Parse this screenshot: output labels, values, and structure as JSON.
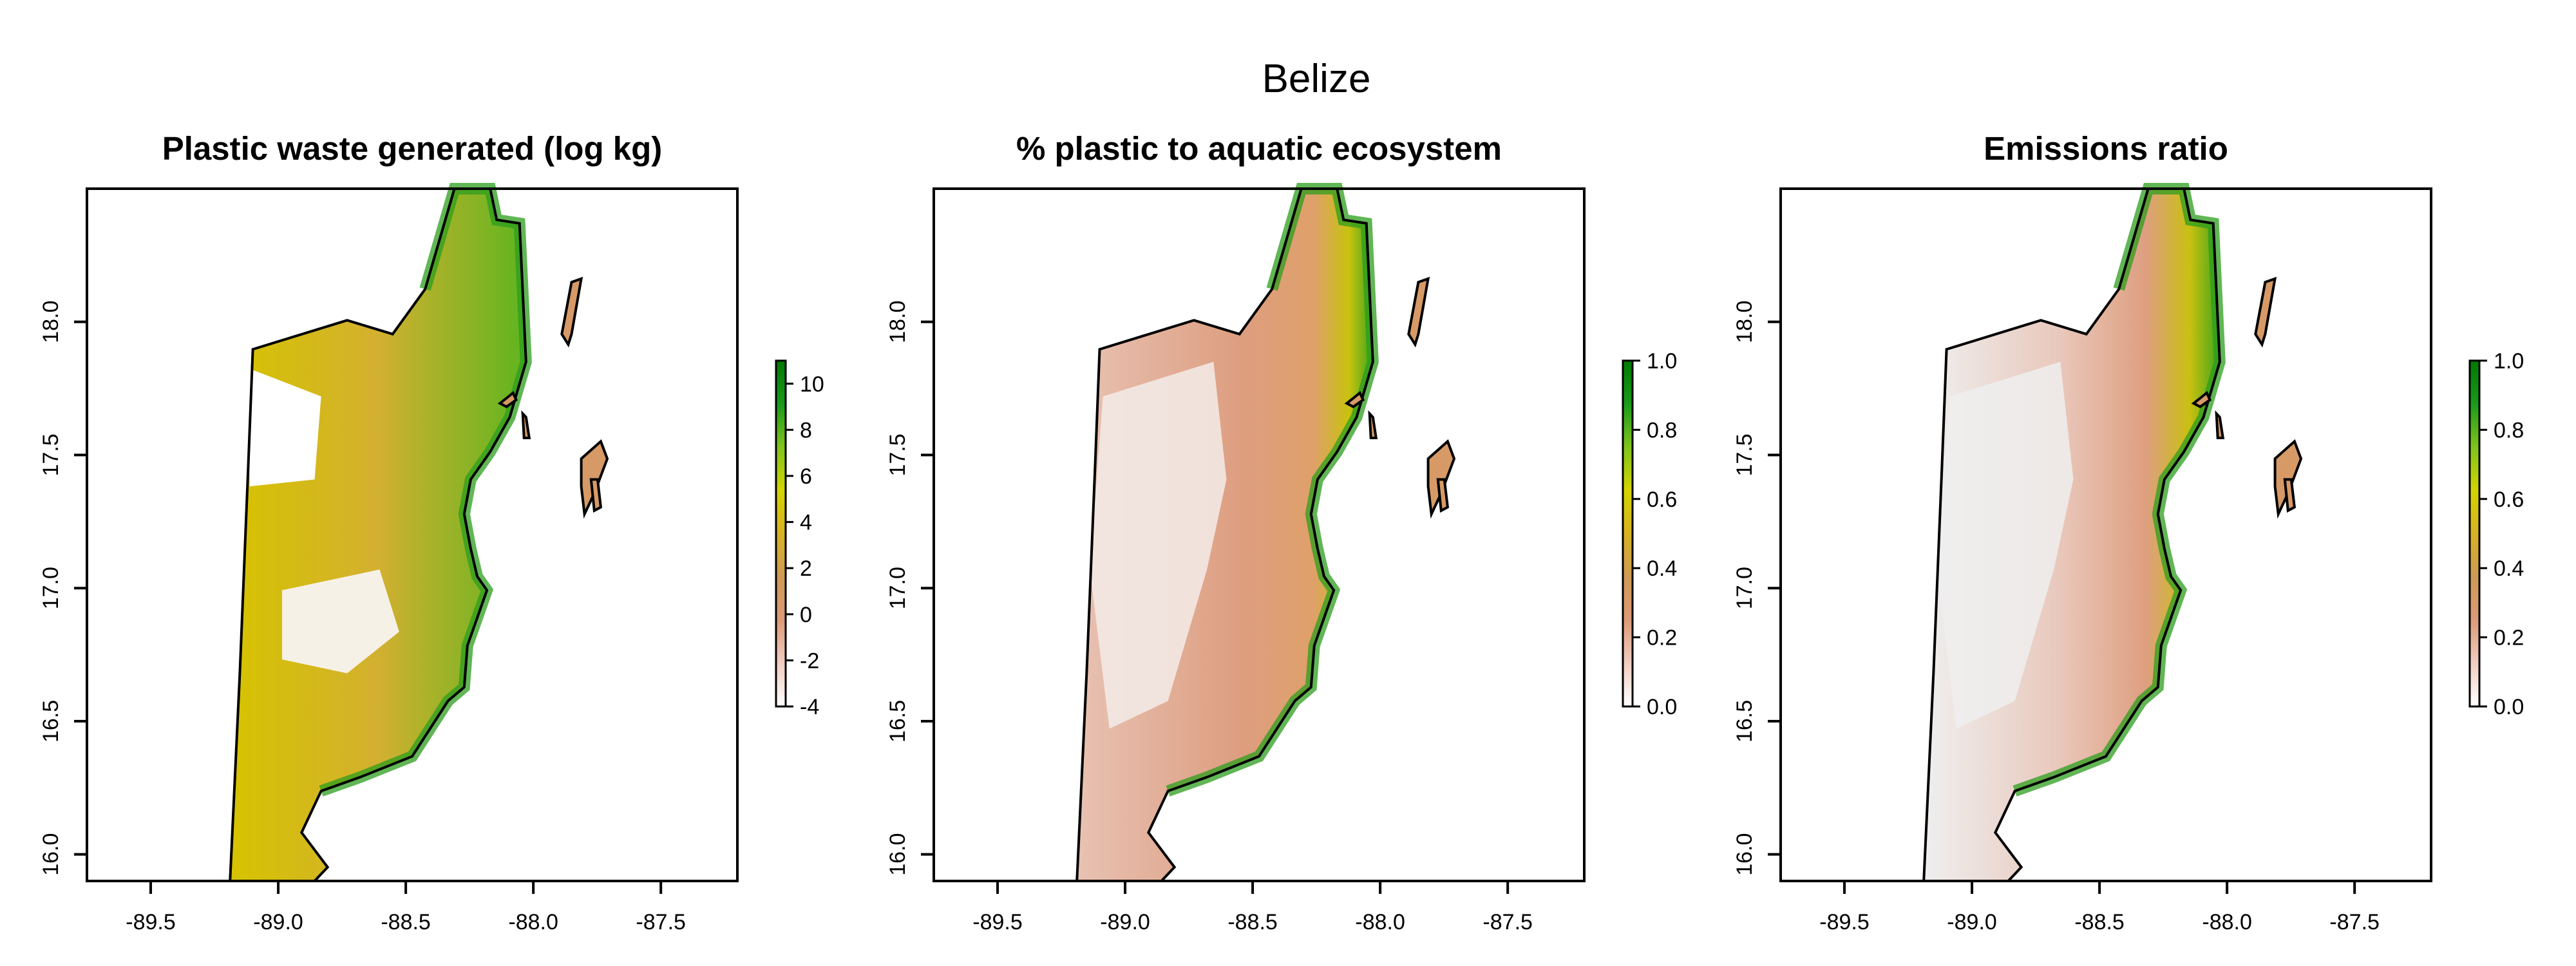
{
  "figure": {
    "title": "Belize",
    "x_ticks": [
      "-89.5",
      "-89.0",
      "-88.5",
      "-88.0",
      "-87.5"
    ],
    "y_ticks": [
      "16.0",
      "16.5",
      "17.0",
      "17.5",
      "18.0"
    ],
    "x_tick_values": [
      -89.5,
      -89.0,
      -88.5,
      -88.0,
      -87.5
    ],
    "y_tick_values": [
      16.0,
      16.5,
      17.0,
      17.5,
      18.0
    ],
    "xlim": [
      -89.75,
      -87.2
    ],
    "ylim": [
      15.9,
      18.5
    ],
    "colors": {
      "legend_gradient": [
        "#ffffff",
        "#f1cdc1",
        "#dd9a77",
        "#cf9a55",
        "#d8b222",
        "#d4d400",
        "#7fc41c",
        "#1a9a1a",
        "#007a00"
      ],
      "outline": "#000000",
      "frame": "#000000"
    }
  },
  "panels": [
    {
      "title": "Plastic waste generated (log kg)",
      "legend_ticks": [
        "10",
        "8",
        "6",
        "4",
        "2",
        "0",
        "-2",
        "-4"
      ],
      "legend_values": [
        10,
        8,
        6,
        4,
        2,
        0,
        -2,
        -4
      ],
      "legend_range": [
        -4,
        11
      ]
    },
    {
      "title": "% plastic to aquatic ecosystem",
      "legend_ticks": [
        "1.0",
        "0.8",
        "0.6",
        "0.4",
        "0.2",
        "0.0"
      ],
      "legend_values": [
        1.0,
        0.8,
        0.6,
        0.4,
        0.2,
        0.0
      ],
      "legend_range": [
        0,
        1
      ]
    },
    {
      "title": "Emissions ratio",
      "legend_ticks": [
        "1.0",
        "0.8",
        "0.6",
        "0.4",
        "0.2",
        "0.0"
      ],
      "legend_values": [
        1.0,
        0.8,
        0.6,
        0.4,
        0.2,
        0.0
      ],
      "legend_range": [
        0,
        1
      ]
    }
  ]
}
